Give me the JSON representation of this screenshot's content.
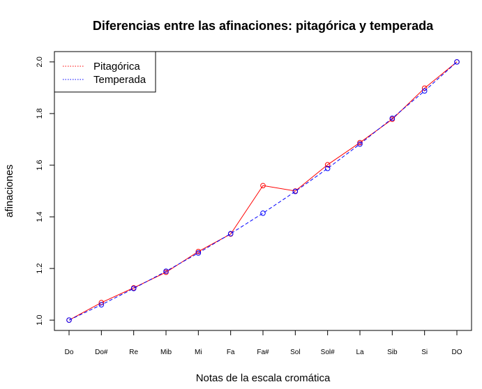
{
  "chart_data": {
    "type": "line",
    "title": "Diferencias entre las afinaciones: pitagórica y temperada",
    "xlabel": "Notas de la escala cromática",
    "ylabel": "afinaciones",
    "categories": [
      "Do",
      "Do#",
      "Re",
      "Mib",
      "Mi",
      "Fa",
      "Fa#",
      "Sol",
      "Sol#",
      "La",
      "Sib",
      "Si",
      "DO"
    ],
    "series": [
      {
        "name": "Pitagórica",
        "color": "#ff0000",
        "line_style": "solid",
        "values": [
          1.0,
          1.0679,
          1.125,
          1.1852,
          1.2656,
          1.3333,
          1.5209,
          1.5,
          1.6018,
          1.6875,
          1.7778,
          1.8984,
          2.0
        ]
      },
      {
        "name": "Temperada",
        "color": "#0000ff",
        "line_style": "dashed",
        "values": [
          1.0,
          1.0595,
          1.1225,
          1.1892,
          1.2599,
          1.3348,
          1.4142,
          1.4983,
          1.5874,
          1.6818,
          1.7818,
          1.8877,
          2.0
        ]
      }
    ],
    "yticks": [
      "1.0",
      "1.2",
      "1.4",
      "1.6",
      "1.8",
      "2.0"
    ],
    "ylim": [
      0.96,
      2.04
    ],
    "grid": false,
    "legend_position": "top-left"
  }
}
